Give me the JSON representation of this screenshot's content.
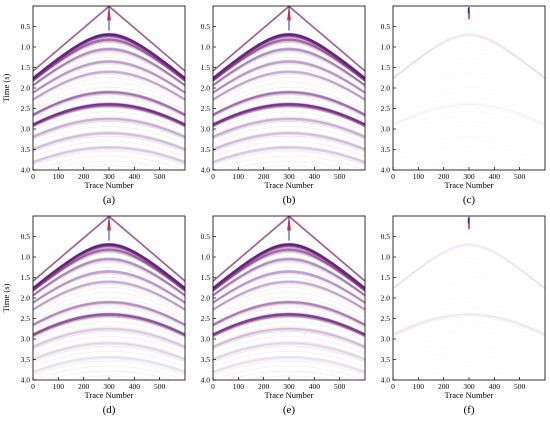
{
  "chart_data": [
    {
      "type": "heatmap",
      "panel_label": "(a)",
      "xlabel": "Trace Number",
      "ylabel": "Time (s)",
      "xlim": [
        0,
        600
      ],
      "ylim": [
        0.0,
        4.0
      ],
      "x_ticks": [
        0,
        100,
        200,
        300,
        400,
        500
      ],
      "y_ticks": [
        0.5,
        1.0,
        1.5,
        2.0,
        2.5,
        3.0,
        3.5,
        4.0
      ],
      "y_inverted": true,
      "source_trace": 300,
      "events": [
        {
          "t0": 0.7,
          "amp": 1.0
        },
        {
          "t0": 0.82,
          "amp": 0.6
        },
        {
          "t0": 1.05,
          "amp": 0.45
        },
        {
          "t0": 1.35,
          "amp": 0.4
        },
        {
          "t0": 1.6,
          "amp": 0.35
        },
        {
          "t0": 2.1,
          "amp": 0.55
        },
        {
          "t0": 2.4,
          "amp": 0.85
        },
        {
          "t0": 2.75,
          "amp": 0.35
        },
        {
          "t0": 3.1,
          "amp": 0.3
        },
        {
          "t0": 3.45,
          "amp": 0.25
        }
      ],
      "direct_wave": true,
      "colors": {
        "positive": "#1a2ab8",
        "negative": "#c8102e"
      }
    },
    {
      "type": "heatmap",
      "panel_label": "(b)",
      "xlabel": "Trace Number",
      "ylabel": "",
      "xlim": [
        0,
        600
      ],
      "ylim": [
        0.0,
        4.0
      ],
      "x_ticks": [
        0,
        100,
        200,
        300,
        400,
        500
      ],
      "y_ticks": [
        0.5,
        1.0,
        1.5,
        2.0,
        2.5,
        3.0,
        3.5,
        4.0
      ],
      "y_inverted": true,
      "source_trace": 300,
      "events": [
        {
          "t0": 0.7,
          "amp": 1.0
        },
        {
          "t0": 0.82,
          "amp": 0.6
        },
        {
          "t0": 1.05,
          "amp": 0.45
        },
        {
          "t0": 1.35,
          "amp": 0.4
        },
        {
          "t0": 1.6,
          "amp": 0.35
        },
        {
          "t0": 2.1,
          "amp": 0.55
        },
        {
          "t0": 2.4,
          "amp": 0.85
        },
        {
          "t0": 2.75,
          "amp": 0.35
        },
        {
          "t0": 3.1,
          "amp": 0.3
        },
        {
          "t0": 3.45,
          "amp": 0.25
        }
      ],
      "direct_wave": true,
      "colors": {
        "positive": "#1a2ab8",
        "negative": "#c8102e"
      }
    },
    {
      "type": "heatmap",
      "panel_label": "(c)",
      "xlabel": "Trace Number",
      "ylabel": "",
      "xlim": [
        0,
        600
      ],
      "ylim": [
        0.0,
        4.0
      ],
      "x_ticks": [
        0,
        100,
        200,
        300,
        400,
        500
      ],
      "y_ticks": [
        0.5,
        1.0,
        1.5,
        2.0,
        2.5,
        3.0,
        3.5,
        4.0
      ],
      "y_inverted": true,
      "source_trace": 300,
      "events": [
        {
          "t0": 0.7,
          "amp": 0.12
        },
        {
          "t0": 2.4,
          "amp": 0.06
        }
      ],
      "direct_wave": false,
      "colors": {
        "positive": "#1a2ab8",
        "negative": "#c8102e"
      }
    },
    {
      "type": "heatmap",
      "panel_label": "(d)",
      "xlabel": "Trace Number",
      "ylabel": "Time (s)",
      "xlim": [
        0,
        600
      ],
      "ylim": [
        0.0,
        4.0
      ],
      "x_ticks": [
        0,
        100,
        200,
        300,
        400,
        500
      ],
      "y_ticks": [
        0.5,
        1.0,
        1.5,
        2.0,
        2.5,
        3.0,
        3.5,
        4.0
      ],
      "y_inverted": true,
      "source_trace": 300,
      "events": [
        {
          "t0": 0.7,
          "amp": 1.0
        },
        {
          "t0": 0.82,
          "amp": 0.6
        },
        {
          "t0": 1.05,
          "amp": 0.45
        },
        {
          "t0": 1.35,
          "amp": 0.4
        },
        {
          "t0": 1.6,
          "amp": 0.35
        },
        {
          "t0": 2.1,
          "amp": 0.45
        },
        {
          "t0": 2.4,
          "amp": 0.7
        },
        {
          "t0": 2.75,
          "amp": 0.25
        },
        {
          "t0": 3.1,
          "amp": 0.2
        },
        {
          "t0": 3.45,
          "amp": 0.15
        }
      ],
      "direct_wave": true,
      "colors": {
        "positive": "#1a2ab8",
        "negative": "#c8102e"
      }
    },
    {
      "type": "heatmap",
      "panel_label": "(e)",
      "xlabel": "Trace Number",
      "ylabel": "",
      "xlim": [
        0,
        600
      ],
      "ylim": [
        0.0,
        4.0
      ],
      "x_ticks": [
        0,
        100,
        200,
        300,
        400,
        500
      ],
      "y_ticks": [
        0.5,
        1.0,
        1.5,
        2.0,
        2.5,
        3.0,
        3.5,
        4.0
      ],
      "y_inverted": true,
      "source_trace": 300,
      "events": [
        {
          "t0": 0.7,
          "amp": 1.0
        },
        {
          "t0": 0.82,
          "amp": 0.6
        },
        {
          "t0": 1.05,
          "amp": 0.45
        },
        {
          "t0": 1.35,
          "amp": 0.4
        },
        {
          "t0": 1.6,
          "amp": 0.35
        },
        {
          "t0": 2.1,
          "amp": 0.5
        },
        {
          "t0": 2.4,
          "amp": 0.8
        },
        {
          "t0": 2.75,
          "amp": 0.3
        },
        {
          "t0": 3.1,
          "amp": 0.2
        },
        {
          "t0": 3.45,
          "amp": 0.15
        }
      ],
      "direct_wave": true,
      "colors": {
        "positive": "#1a2ab8",
        "negative": "#c8102e"
      }
    },
    {
      "type": "heatmap",
      "panel_label": "(f)",
      "xlabel": "Trace Number",
      "ylabel": "",
      "xlim": [
        0,
        600
      ],
      "ylim": [
        0.0,
        4.0
      ],
      "x_ticks": [
        0,
        100,
        200,
        300,
        400,
        500
      ],
      "y_ticks": [
        0.5,
        1.0,
        1.5,
        2.0,
        2.5,
        3.0,
        3.5,
        4.0
      ],
      "y_inverted": true,
      "source_trace": 300,
      "events": [
        {
          "t0": 0.7,
          "amp": 0.1
        },
        {
          "t0": 2.4,
          "amp": 0.12
        }
      ],
      "direct_wave": false,
      "colors": {
        "positive": "#1a2ab8",
        "negative": "#c8102e"
      }
    }
  ]
}
